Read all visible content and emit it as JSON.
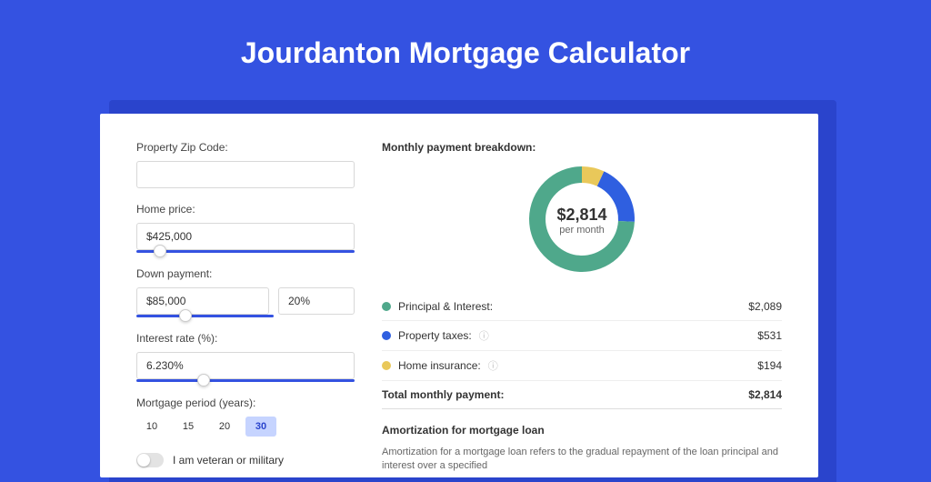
{
  "page": {
    "title": "Jourdanton Mortgage Calculator",
    "background_color": "#3452e1",
    "shadow_color": "#2a44cc",
    "card_bg": "#ffffff"
  },
  "form": {
    "zip": {
      "label": "Property Zip Code:",
      "value": ""
    },
    "home_price": {
      "label": "Home price:",
      "value": "$425,000",
      "slider_pos_pct": 8
    },
    "down_payment": {
      "label": "Down payment:",
      "amount": "$85,000",
      "pct": "20%",
      "slider_pos_pct": 20
    },
    "interest_rate": {
      "label": "Interest rate (%):",
      "value": "6.230%",
      "slider_pos_pct": 28
    },
    "period": {
      "label": "Mortgage period (years):",
      "options": [
        "10",
        "15",
        "20",
        "30"
      ],
      "active_index": 3
    },
    "veteran": {
      "label": "I am veteran or military",
      "value": false
    }
  },
  "breakdown": {
    "title": "Monthly payment breakdown:",
    "donut": {
      "center_amount": "$2,814",
      "center_sub": "per month",
      "series": [
        {
          "label": "Principal & Interest:",
          "value": "$2,089",
          "color": "#4fa88b",
          "share": 0.742
        },
        {
          "label": "Property taxes:",
          "value": "$531",
          "color": "#2f5fe0",
          "share": 0.189,
          "info": true
        },
        {
          "label": "Home insurance:",
          "value": "$194",
          "color": "#e9c85a",
          "share": 0.069,
          "info": true
        }
      ],
      "ring_width": 18,
      "radius": 58
    },
    "total": {
      "label": "Total monthly payment:",
      "value": "$2,814"
    }
  },
  "amortization": {
    "title": "Amortization for mortgage loan",
    "text": "Amortization for a mortgage loan refers to the gradual repayment of the loan principal and interest over a specified"
  }
}
